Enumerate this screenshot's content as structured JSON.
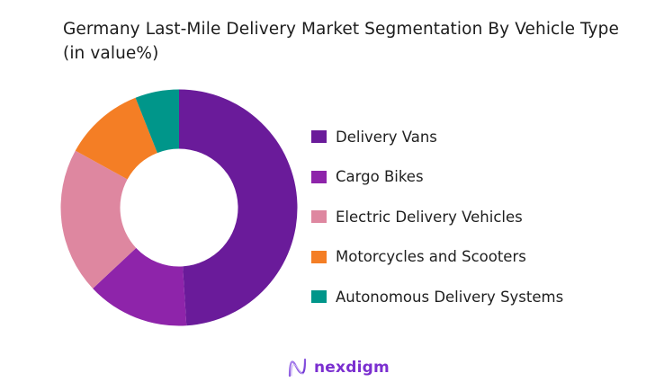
{
  "title": "Germany Last-Mile Delivery  Market Segmentation By Vehicle Type (in value%)",
  "chart_data": {
    "type": "pie",
    "subtype": "donut",
    "title": "Germany Last-Mile Delivery  Market Segmentation By Vehicle Type (in value%)",
    "categories": [
      "Delivery Vans",
      "Cargo Bikes",
      "Electric Delivery Vehicles",
      "Motorcycles and Scooters",
      "Autonomous Delivery Systems"
    ],
    "values": [
      49,
      14,
      20,
      11,
      6
    ],
    "colors": [
      "#6A1B9A",
      "#8E24AA",
      "#DE87A0",
      "#F47E25",
      "#00968A"
    ],
    "start_angle_deg": 0,
    "direction": "clockwise",
    "legend_position": "right",
    "data_labels": false
  },
  "legend": {
    "items": [
      {
        "label": "Delivery Vans",
        "color": "#6A1B9A"
      },
      {
        "label": "Cargo Bikes",
        "color": "#8E24AA"
      },
      {
        "label": "Electric Delivery Vehicles",
        "color": "#DE87A0"
      },
      {
        "label": "Motorcycles and Scooters",
        "color": "#F47E25"
      },
      {
        "label": "Autonomous Delivery Systems",
        "color": "#00968A"
      }
    ]
  },
  "logo": {
    "text": "nexdigm",
    "icon": "nexdigm-wave-logo-icon",
    "color": "#7B2FD0"
  }
}
